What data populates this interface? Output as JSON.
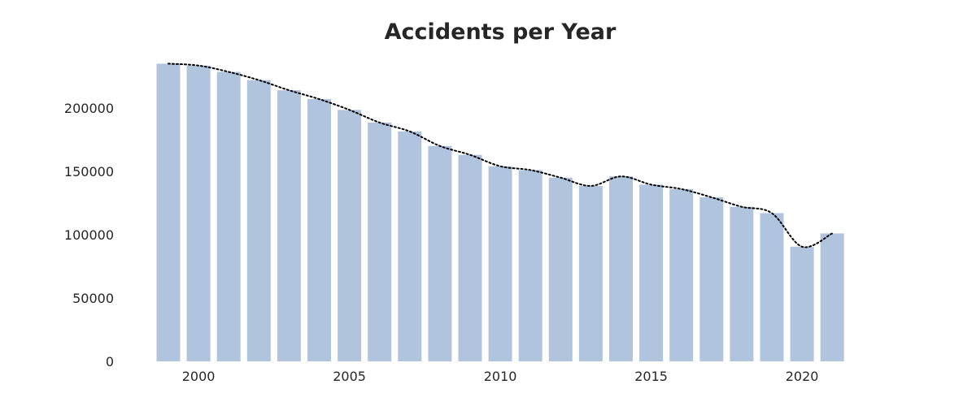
{
  "chart_data": {
    "type": "bar",
    "title": "Accidents per Year",
    "xlabel": "",
    "ylabel": "",
    "categories": [
      1999,
      2000,
      2001,
      2002,
      2003,
      2004,
      2005,
      2006,
      2007,
      2008,
      2009,
      2010,
      2011,
      2012,
      2013,
      2014,
      2015,
      2016,
      2017,
      2018,
      2019,
      2020,
      2021
    ],
    "series": [
      {
        "values": [
          235000,
          233500,
          228500,
          222000,
          214000,
          207000,
          198500,
          188500,
          181500,
          170000,
          163000,
          154000,
          151000,
          145000,
          138500,
          146000,
          139500,
          136000,
          129500,
          122000,
          117000,
          90500,
          101000
        ],
        "color": "#b0c4de"
      }
    ],
    "trend_line": {
      "style": "dotted",
      "color": "#000000",
      "values": [
        235000,
        233500,
        228500,
        222000,
        214000,
        207000,
        198500,
        188500,
        181500,
        170000,
        163000,
        154000,
        151000,
        145000,
        138500,
        146000,
        139500,
        136000,
        129500,
        122000,
        117000,
        90500,
        101000
      ]
    },
    "xticks": [
      2000,
      2005,
      2010,
      2015,
      2020
    ],
    "yticks": [
      0,
      50000,
      100000,
      150000,
      200000
    ],
    "ylim": [
      0,
      240000
    ],
    "grid": false,
    "legend": "none"
  }
}
